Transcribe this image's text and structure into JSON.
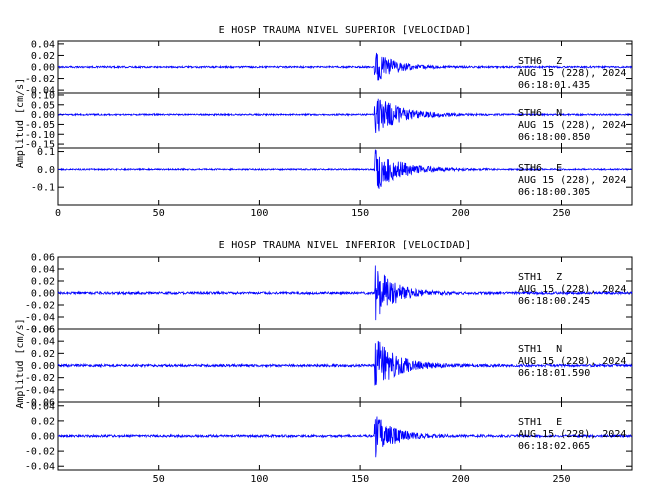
{
  "chart_data": [
    {
      "type": "line",
      "title": "E HOSP TRAUMA NIVEL SUPERIOR [VELOCIDAD]",
      "ylabel": "Amplitud [cm/s]",
      "xlabel": "",
      "xlim": [
        0,
        285
      ],
      "x_ticks": [
        "0",
        "50",
        "100",
        "150",
        "200",
        "250"
      ],
      "x_tick_values": [
        0,
        50,
        100,
        150,
        200,
        250
      ],
      "grid": false,
      "event_onset_s": 157,
      "line_color": "#0000ff",
      "traces": [
        {
          "station": "STH6",
          "component": "Z",
          "date": "AUG 15 (228), 2024",
          "time": "06:18:01.435",
          "ylim": [
            -0.045,
            0.045
          ],
          "y_ticks": [
            "0.04",
            "0.02",
            "0.00",
            "-0.02",
            "-0.04"
          ],
          "y_tick_values": [
            0.04,
            0.02,
            0.0,
            -0.02,
            -0.04
          ],
          "peak_amplitude": 0.03,
          "noise_amplitude": 0.0015,
          "decay_s": 9
        },
        {
          "station": "STH6",
          "component": "N",
          "date": "AUG 15 (228), 2024",
          "time": "06:18:00.850",
          "ylim": [
            -0.17,
            0.11
          ],
          "y_ticks": [
            "0.10",
            "0.05",
            "0.00",
            "-0.05",
            "-0.10",
            "-0.15"
          ],
          "y_tick_values": [
            0.1,
            0.05,
            0.0,
            -0.05,
            -0.1,
            -0.15
          ],
          "peak_amplitude": 0.11,
          "noise_amplitude": 0.004,
          "decay_s": 12
        },
        {
          "station": "STH6",
          "component": "E",
          "date": "AUG 15 (228), 2024",
          "time": "06:18:00.305",
          "ylim": [
            -0.2,
            0.12
          ],
          "y_ticks": [
            "0.1",
            "0.0",
            "-0.1"
          ],
          "y_tick_values": [
            0.1,
            0.0,
            -0.1
          ],
          "peak_amplitude": 0.13,
          "noise_amplitude": 0.004,
          "decay_s": 12
        }
      ]
    },
    {
      "type": "line",
      "title": "E HOSP TRAUMA NIVEL INFERIOR [VELOCIDAD]",
      "ylabel": "Amplitud [cm/s]",
      "xlabel": "",
      "xlim": [
        0,
        285
      ],
      "x_ticks": [
        "50",
        "100",
        "150",
        "200",
        "250"
      ],
      "x_tick_values": [
        50,
        100,
        150,
        200,
        250
      ],
      "grid": false,
      "event_onset_s": 157,
      "line_color": "#0000ff",
      "traces": [
        {
          "station": "STH1",
          "component": "Z",
          "date": "AUG 15 (228), 2024",
          "time": "06:18:00.245",
          "ylim": [
            -0.06,
            0.06
          ],
          "y_ticks": [
            "0.06",
            "0.04",
            "0.02",
            "0.00",
            "-0.02",
            "-0.04",
            "-0.06"
          ],
          "y_tick_values": [
            0.06,
            0.04,
            0.02,
            0.0,
            -0.02,
            -0.04,
            -0.06
          ],
          "peak_amplitude": 0.05,
          "noise_amplitude": 0.002,
          "decay_s": 9
        },
        {
          "station": "STH1",
          "component": "N",
          "date": "AUG 15 (228), 2024",
          "time": "06:18:01.590",
          "ylim": [
            -0.06,
            0.06
          ],
          "y_ticks": [
            "0.06",
            "0.04",
            "0.02",
            "0.00",
            "-0.02",
            "-0.04",
            "-0.06"
          ],
          "y_tick_values": [
            0.06,
            0.04,
            0.02,
            0.0,
            -0.02,
            -0.04,
            -0.06
          ],
          "peak_amplitude": 0.05,
          "noise_amplitude": 0.002,
          "decay_s": 10
        },
        {
          "station": "STH1",
          "component": "E",
          "date": "AUG 15 (228), 2024",
          "time": "06:18:02.065",
          "ylim": [
            -0.045,
            0.045
          ],
          "y_ticks": [
            "0.04",
            "0.02",
            "0.00",
            "-0.02",
            "-0.04"
          ],
          "y_tick_values": [
            0.04,
            0.02,
            0.0,
            -0.02,
            -0.04
          ],
          "peak_amplitude": 0.03,
          "noise_amplitude": 0.0015,
          "decay_s": 9
        }
      ]
    }
  ]
}
